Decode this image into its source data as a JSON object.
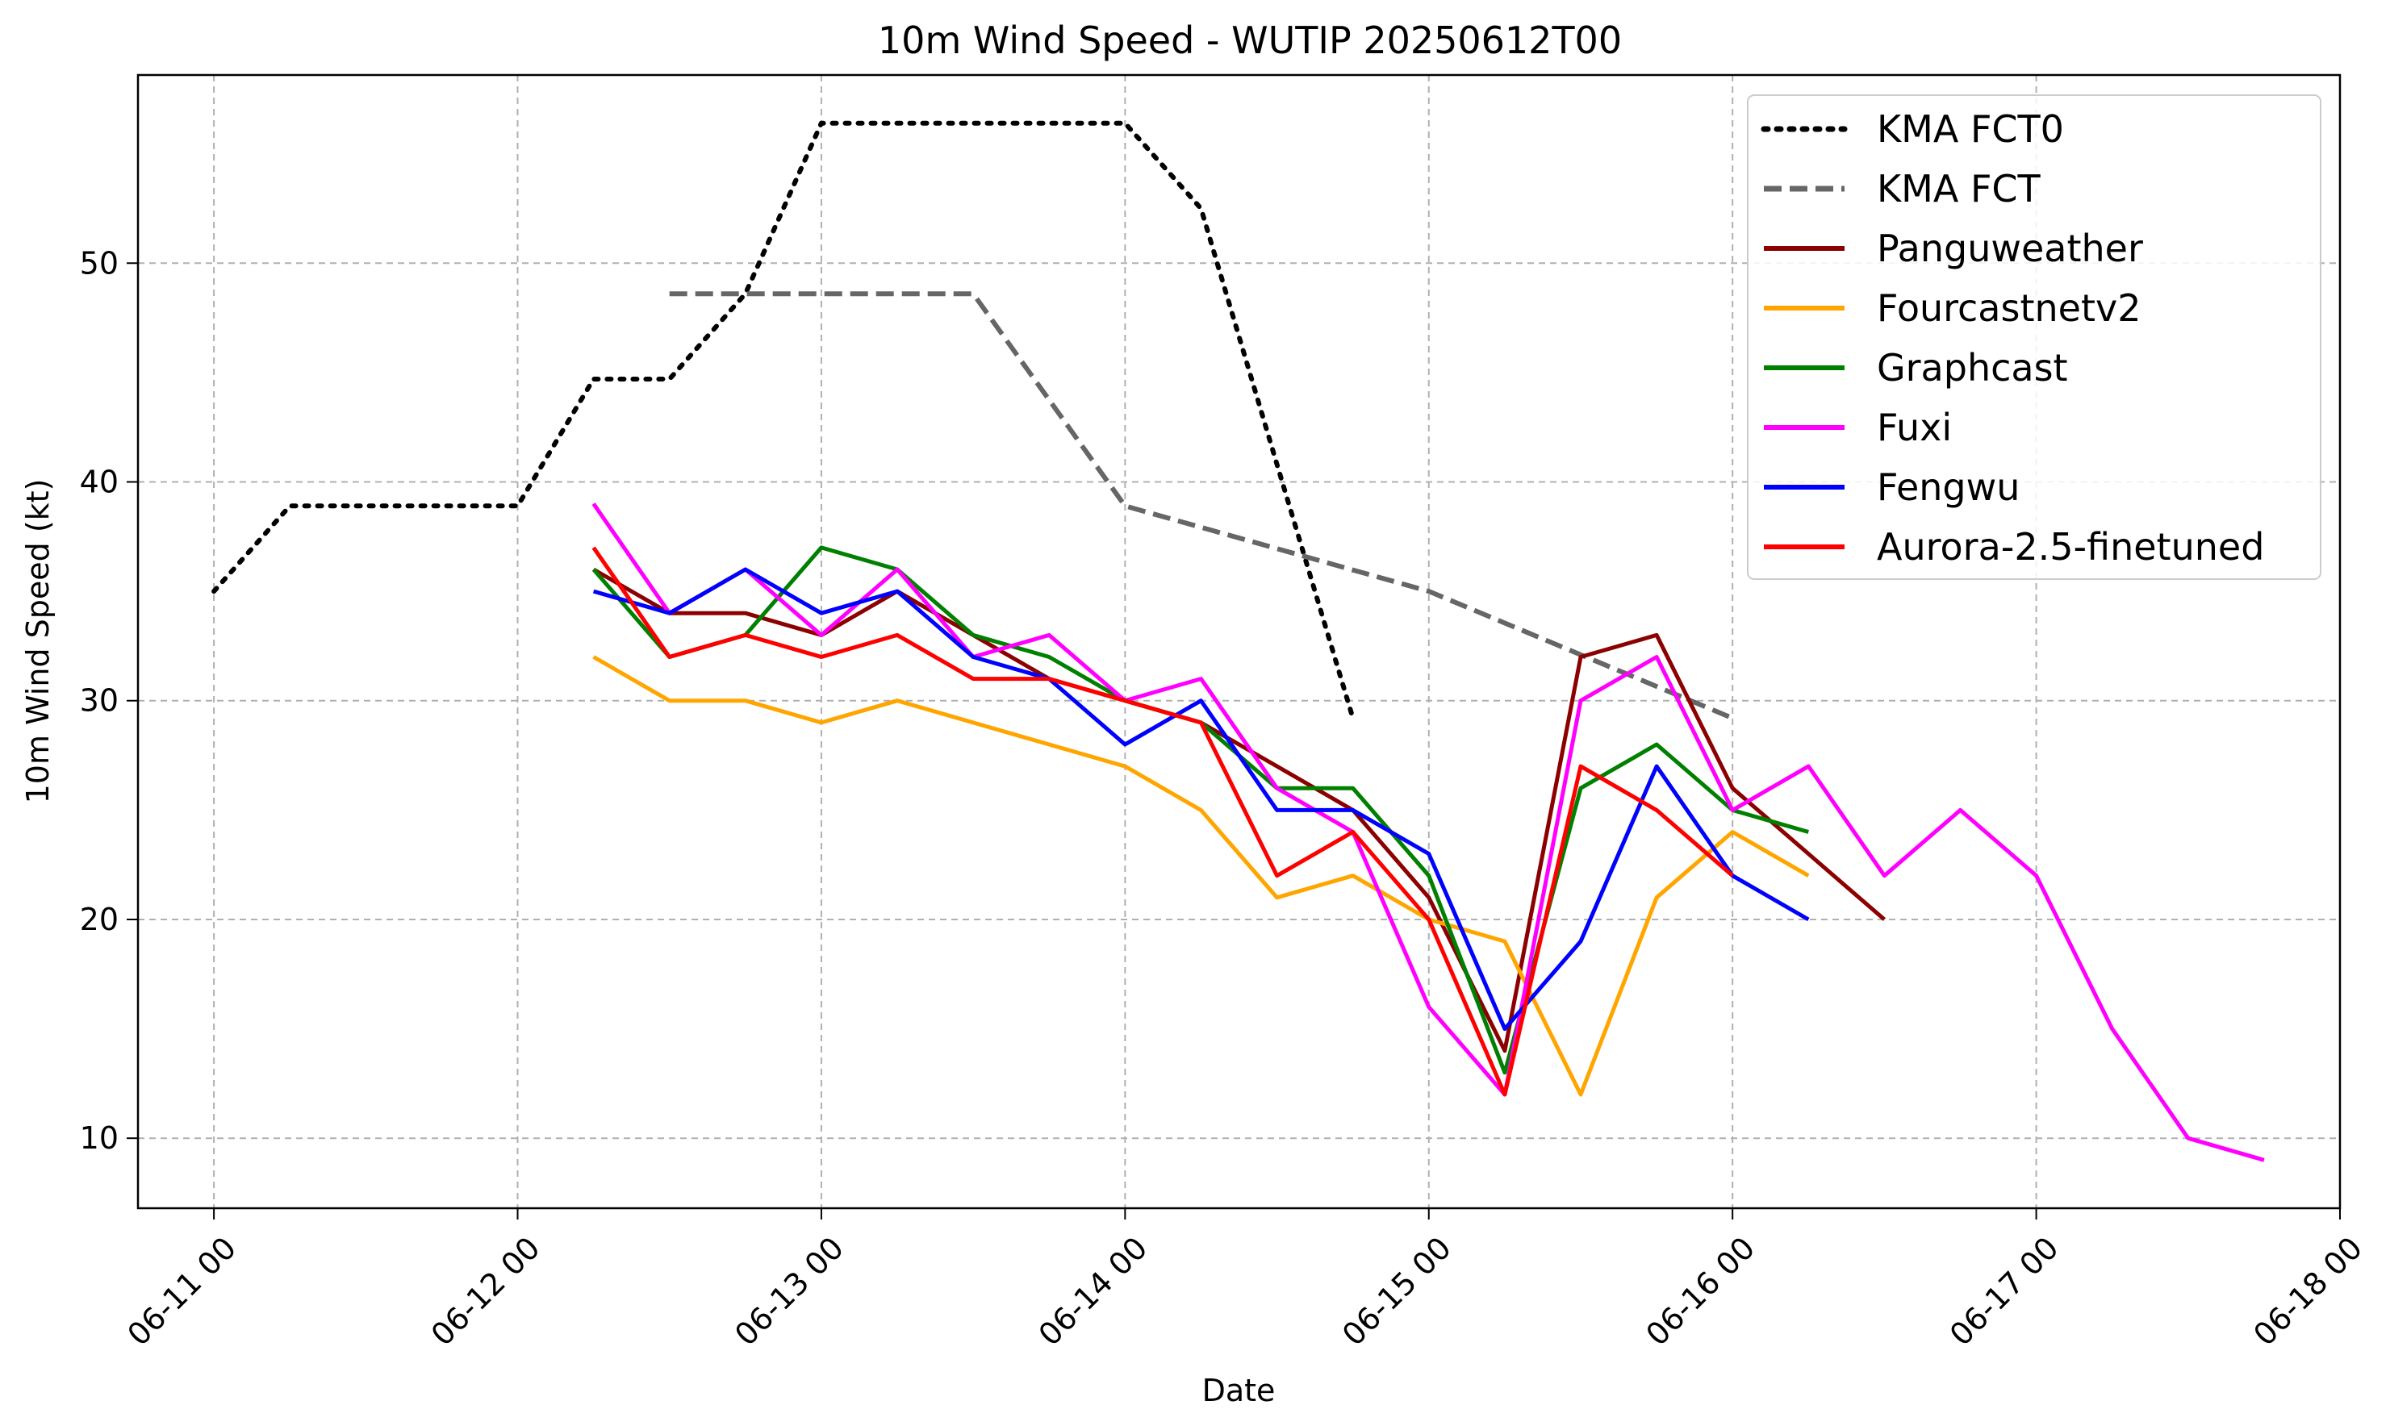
{
  "chart_data": {
    "type": "line",
    "title": "10m Wind Speed - WUTIP 20250612T00",
    "xlabel": "Date",
    "ylabel": "10m Wind Speed (kt)",
    "xlim_hours": [
      -6,
      168
    ],
    "ylim": [
      6.8,
      58.6
    ],
    "x_unit": "hours since 2025-06-11 00:00",
    "x_ticks": [
      {
        "label": "06-11 00",
        "hours": 0
      },
      {
        "label": "06-12 00",
        "hours": 24
      },
      {
        "label": "06-13 00",
        "hours": 48
      },
      {
        "label": "06-14 00",
        "hours": 72
      },
      {
        "label": "06-15 00",
        "hours": 96
      },
      {
        "label": "06-16 00",
        "hours": 120
      },
      {
        "label": "06-17 00",
        "hours": 144
      },
      {
        "label": "06-18 00",
        "hours": 168
      }
    ],
    "y_ticks": [
      10,
      20,
      30,
      40,
      50
    ],
    "grid": true,
    "legend_position": "top-right",
    "series": [
      {
        "name": "KMA FCT0",
        "color": "#000000",
        "style": "dotted",
        "x": [
          0,
          6,
          24,
          30,
          36,
          42,
          48,
          72,
          78,
          84,
          90
        ],
        "values": [
          35,
          38.9,
          38.9,
          44.7,
          44.7,
          48.6,
          56.4,
          56.4,
          52.5,
          40.8,
          29.2
        ]
      },
      {
        "name": "KMA FCT",
        "color": "#666666",
        "style": "dashed",
        "x": [
          36,
          48,
          60,
          72,
          96,
          120
        ],
        "values": [
          48.6,
          48.6,
          48.6,
          38.9,
          35,
          29.2
        ]
      },
      {
        "name": "Panguweather",
        "color": "#8b0000",
        "style": "solid",
        "x": [
          30,
          36,
          42,
          48,
          54,
          60,
          66,
          72,
          78,
          84,
          90,
          96,
          102,
          108,
          114,
          120,
          126,
          132
        ],
        "values": [
          36,
          34,
          34,
          33,
          35,
          33,
          31,
          30,
          29,
          27,
          25,
          21,
          14,
          32,
          33,
          26,
          23,
          20
        ]
      },
      {
        "name": "Fourcastnetv2",
        "color": "#ffa500",
        "style": "solid",
        "x": [
          30,
          36,
          42,
          48,
          54,
          60,
          66,
          72,
          78,
          84,
          90,
          96,
          102,
          108,
          114,
          120,
          126
        ],
        "values": [
          32,
          30,
          30,
          29,
          30,
          29,
          28,
          27,
          25,
          21,
          22,
          20,
          19,
          12,
          21,
          24,
          22
        ]
      },
      {
        "name": "Graphcast",
        "color": "#008000",
        "style": "solid",
        "x": [
          30,
          36,
          42,
          48,
          54,
          60,
          66,
          72,
          78,
          84,
          90,
          96,
          102,
          108,
          114,
          120,
          126
        ],
        "values": [
          36,
          32,
          33,
          37,
          36,
          33,
          32,
          30,
          29,
          26,
          26,
          22,
          13,
          26,
          28,
          25,
          24
        ]
      },
      {
        "name": "Fuxi",
        "color": "#ff00ff",
        "style": "solid",
        "x": [
          30,
          36,
          42,
          48,
          54,
          60,
          66,
          72,
          78,
          84,
          90,
          96,
          102,
          108,
          114,
          120,
          126,
          132,
          138,
          144,
          150,
          156,
          162
        ],
        "values": [
          39,
          34,
          36,
          33,
          36,
          32,
          33,
          30,
          31,
          26,
          24,
          16,
          12,
          30,
          32,
          25,
          27,
          22,
          25,
          22,
          15,
          10,
          9
        ]
      },
      {
        "name": "Fengwu",
        "color": "#0000ff",
        "style": "solid",
        "x": [
          30,
          36,
          42,
          48,
          54,
          60,
          66,
          72,
          78,
          84,
          90,
          96,
          102,
          108,
          114,
          120,
          126
        ],
        "values": [
          35,
          34,
          36,
          34,
          35,
          32,
          31,
          28,
          30,
          25,
          25,
          23,
          15,
          19,
          27,
          22,
          20
        ]
      },
      {
        "name": "Aurora-2.5-finetuned",
        "color": "#ff0000",
        "style": "solid",
        "x": [
          30,
          36,
          42,
          48,
          54,
          60,
          66,
          72,
          78,
          84,
          90,
          96,
          102,
          108,
          114,
          120
        ],
        "values": [
          37,
          32,
          33,
          32,
          33,
          31,
          31,
          30,
          29,
          22,
          24,
          20,
          12,
          27,
          25,
          22
        ]
      }
    ]
  }
}
